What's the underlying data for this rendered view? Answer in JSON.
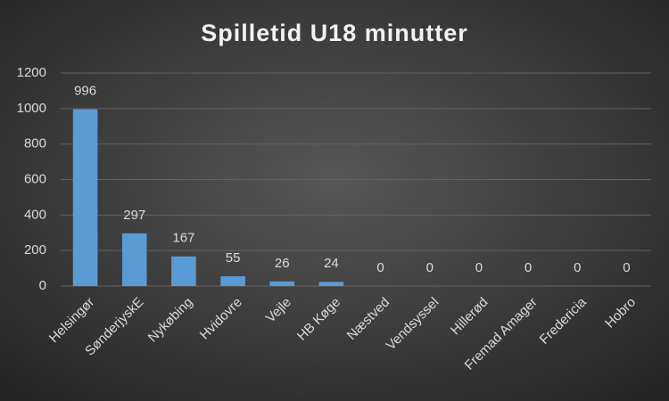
{
  "chart_data": {
    "type": "bar",
    "title": "Spilletid U18 minutter",
    "categories": [
      "Helsingør",
      "SønderjyskE",
      "Nykøbing",
      "Hvidovre",
      "Vejle",
      "HB Køge",
      "Næstved",
      "Vendsyssel",
      "Hillerød",
      "Fremad Amager",
      "Fredericia",
      "Hobro"
    ],
    "values": [
      996,
      297,
      167,
      55,
      26,
      24,
      0,
      0,
      0,
      0,
      0,
      0
    ],
    "color": "#5b9bd5",
    "ylim": [
      0,
      1200
    ],
    "yticks": [
      0,
      200,
      400,
      600,
      800,
      1000,
      1200
    ],
    "grid": true
  }
}
